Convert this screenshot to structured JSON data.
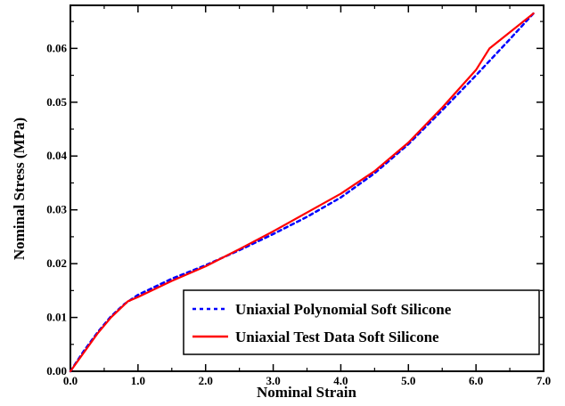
{
  "chart_data": {
    "type": "line",
    "title": "",
    "xlabel": "Nominal Strain",
    "ylabel": "Nominal Stress (MPa)",
    "xlim": [
      0,
      7
    ],
    "ylim": [
      0,
      0.068
    ],
    "x_ticks": [
      0,
      1,
      2,
      3,
      4,
      5,
      6,
      7
    ],
    "x_tick_labels": [
      "0.0",
      "1.0",
      "2.0",
      "3.0",
      "4.0",
      "5.0",
      "6.0",
      "7.0"
    ],
    "y_ticks": [
      0,
      0.01,
      0.02,
      0.03,
      0.04,
      0.05,
      0.06
    ],
    "y_tick_labels": [
      "0.00",
      "0.01",
      "0.02",
      "0.03",
      "0.04",
      "0.05",
      "0.06"
    ],
    "grid": false,
    "legend_position": "bottom-right",
    "series": [
      {
        "name": "Uniaxial Polynomial Soft Silicone",
        "color": "#0000ff",
        "style": "dashed",
        "x": [
          0,
          0.2,
          0.4,
          0.6,
          0.8,
          1.0,
          1.5,
          2.0,
          2.5,
          3.0,
          3.5,
          4.0,
          4.5,
          5.0,
          5.5,
          6.0,
          6.5,
          6.85
        ],
        "y": [
          0,
          0.0038,
          0.0072,
          0.0102,
          0.0125,
          0.0142,
          0.0172,
          0.0197,
          0.0225,
          0.0255,
          0.0287,
          0.0323,
          0.0368,
          0.0422,
          0.0485,
          0.055,
          0.0617,
          0.0665
        ]
      },
      {
        "name": "Uniaxial Test Data Soft Silicone",
        "color": "#ff0000",
        "style": "solid",
        "x": [
          0,
          0.2,
          0.4,
          0.6,
          0.85,
          1.0,
          1.5,
          2.0,
          2.5,
          3.0,
          3.5,
          4.0,
          4.5,
          5.0,
          5.5,
          6.0,
          6.2,
          6.5,
          6.85
        ],
        "y": [
          0,
          0.0035,
          0.007,
          0.01,
          0.013,
          0.0138,
          0.0168,
          0.0195,
          0.0227,
          0.026,
          0.0295,
          0.033,
          0.0372,
          0.0425,
          0.049,
          0.056,
          0.06,
          0.063,
          0.0665
        ]
      }
    ]
  }
}
